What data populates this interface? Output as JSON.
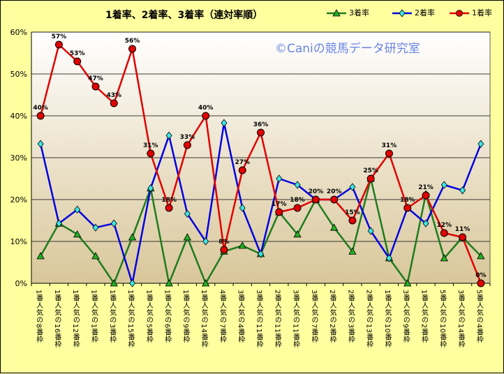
{
  "chart_data": {
    "type": "line",
    "title": "1着率、2着率、3着率（連対率順）",
    "watermark": "©Caniの競馬データ研究室",
    "ylim": [
      0,
      60
    ],
    "yticks": [
      0,
      10,
      20,
      30,
      40,
      50,
      60
    ],
    "ytick_labels": [
      "0%",
      "10%",
      "20%",
      "30%",
      "40%",
      "50%",
      "60%"
    ],
    "grid": "horizontal",
    "legend_position": "top-right",
    "categories": [
      "1番人気の8番枠",
      "1番人気の16番枠",
      "1番人気の12番枠",
      "1番人気の1番枠",
      "1番人気の3番枠",
      "1番人気の15番枠",
      "1番人気の5番枠",
      "1番人気の6番枠",
      "1番人気の9番枠",
      "1番人気の14番枠",
      "4番人気の7番枠",
      "3番人気の4番枠",
      "3番人気の11番枠",
      "2番人気の11番枠",
      "3番人気の11番枠",
      "3番人気の7番枠",
      "2番人気の2番枠",
      "2番人気の3番枠",
      "2番人気の13番枠",
      "1番人気の10番枠",
      "3番人気の9番枠",
      "1番人気の2番枠",
      "5番人気の10番枠",
      "3番人気の14番枠",
      "5番人気の4番枠"
    ],
    "series": [
      {
        "name": "3着率",
        "color": "#1E7B1E",
        "marker_color": "#22B022",
        "marker": "triangle",
        "values": [
          6.5,
          14.3,
          11.7,
          6.5,
          0,
          11,
          22.7,
          0,
          11,
          0,
          7.6,
          9,
          7,
          17,
          11.7,
          20,
          13.3,
          7.6,
          25,
          6,
          0,
          21.3,
          6,
          11,
          6.5
        ]
      },
      {
        "name": "2着率",
        "color": "#0000E0",
        "marker_color": "#3CE6E6",
        "marker": "diamond",
        "values": [
          33.3,
          14.3,
          17.6,
          13.3,
          14.3,
          0,
          22.7,
          35.3,
          16.6,
          10,
          38.3,
          18,
          7,
          25,
          23.5,
          20,
          20,
          23,
          12.5,
          6,
          18,
          14.3,
          23.5,
          22.2,
          33.3
        ]
      },
      {
        "name": "1着率",
        "color": "#E00000",
        "marker_color": "#E00000",
        "marker": "circle",
        "values": [
          40,
          57,
          53,
          47,
          43,
          56,
          31,
          18,
          33,
          40,
          8,
          27,
          36,
          17,
          18,
          20,
          20,
          15,
          25,
          31,
          18,
          21,
          12,
          11,
          0
        ],
        "data_labels": [
          "40%",
          "57%",
          "53%",
          "47%",
          "43%",
          "56%",
          "31%",
          "18%",
          "33%",
          "40%",
          "8%",
          "27%",
          "36%",
          "17%",
          "18%",
          "20%",
          "20%",
          "15%",
          "25%",
          "31%",
          "18%",
          "21%",
          "12%",
          "11%",
          "0%"
        ]
      }
    ],
    "legend_order": [
      "3着率",
      "2着率",
      "1着率"
    ]
  }
}
